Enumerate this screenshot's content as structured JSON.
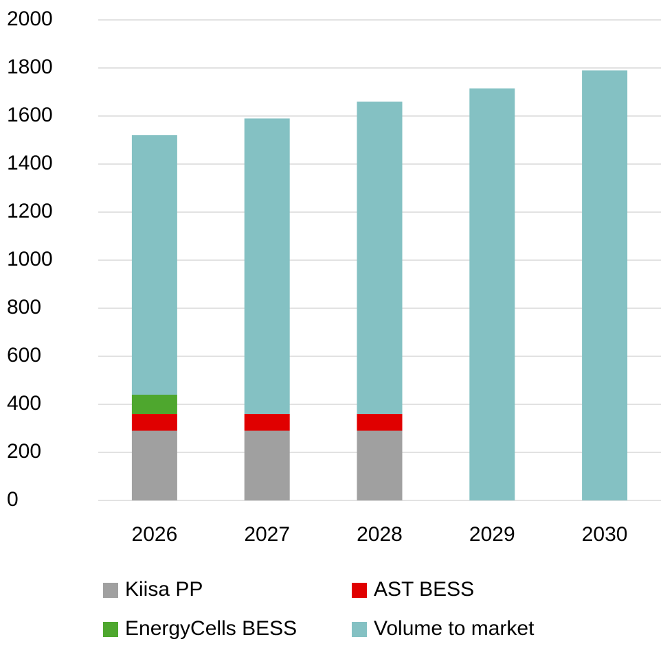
{
  "chart_data": {
    "type": "stacked_bar",
    "categories": [
      "2026",
      "2027",
      "2028",
      "2029",
      "2030"
    ],
    "series": [
      {
        "name": "Kiisa PP",
        "color": "#a0a0a0",
        "values": [
          290,
          290,
          290,
          0,
          0
        ]
      },
      {
        "name": "AST BESS",
        "color": "#e00000",
        "values": [
          70,
          70,
          70,
          0,
          0
        ]
      },
      {
        "name": "EnergyCells BESS",
        "color": "#4ea72e",
        "values": [
          80,
          0,
          0,
          0,
          0
        ]
      },
      {
        "name": "Volume to market",
        "color": "#84c1c3",
        "values": [
          1080,
          1230,
          1300,
          1715,
          1790
        ]
      }
    ],
    "ylim": [
      0,
      2000
    ],
    "yticks": [
      0,
      200,
      400,
      600,
      800,
      1000,
      1200,
      1400,
      1600,
      1800,
      2000
    ],
    "grid": true,
    "legend": "bottom"
  }
}
